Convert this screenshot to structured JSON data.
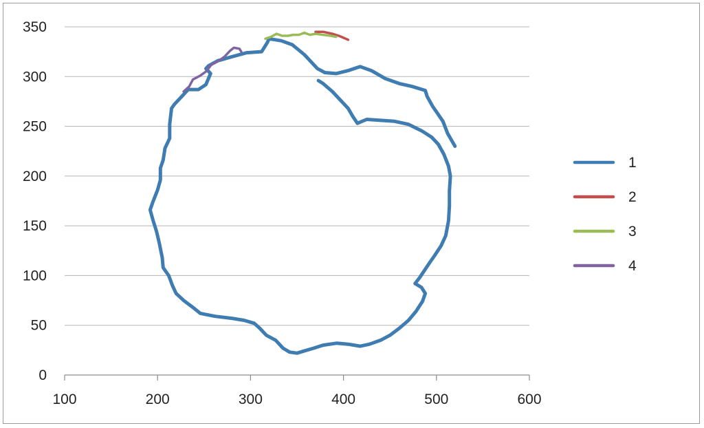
{
  "chart_data": {
    "type": "line",
    "xlim": [
      100,
      600
    ],
    "ylim": [
      0,
      350
    ],
    "x_ticks": [
      "100",
      "200",
      "300",
      "400",
      "500",
      "600"
    ],
    "y_ticks": [
      "0",
      "50",
      "100",
      "150",
      "200",
      "250",
      "300",
      "350"
    ],
    "grid": "horizontal",
    "legend_placement": "right",
    "series": [
      {
        "name": "1",
        "color": "#3e7cb1",
        "points": [
          [
            520,
            230
          ],
          [
            512,
            243
          ],
          [
            507,
            255
          ],
          [
            496,
            270
          ],
          [
            490,
            280
          ],
          [
            488,
            286
          ],
          [
            474,
            290
          ],
          [
            460,
            293
          ],
          [
            445,
            298
          ],
          [
            430,
            306
          ],
          [
            418,
            310
          ],
          [
            405,
            306
          ],
          [
            392,
            303
          ],
          [
            380,
            304
          ],
          [
            372,
            308
          ],
          [
            358,
            322
          ],
          [
            345,
            332
          ],
          [
            333,
            336
          ],
          [
            320,
            338
          ],
          [
            318,
            334
          ],
          [
            312,
            325
          ],
          [
            296,
            324
          ],
          [
            280,
            320
          ],
          [
            265,
            316
          ],
          [
            255,
            311
          ],
          [
            252,
            308
          ],
          [
            257,
            303
          ],
          [
            252,
            292
          ],
          [
            244,
            287
          ],
          [
            233,
            287
          ],
          [
            226,
            280
          ],
          [
            218,
            272
          ],
          [
            215,
            268
          ],
          [
            213,
            252
          ],
          [
            213,
            238
          ],
          [
            208,
            228
          ],
          [
            206,
            216
          ],
          [
            203,
            208
          ],
          [
            203,
            196
          ],
          [
            200,
            186
          ],
          [
            195,
            174
          ],
          [
            192,
            166
          ],
          [
            195,
            156
          ],
          [
            199,
            144
          ],
          [
            202,
            132
          ],
          [
            205,
            118
          ],
          [
            206,
            108
          ],
          [
            212,
            100
          ],
          [
            216,
            90
          ],
          [
            220,
            82
          ],
          [
            228,
            75
          ],
          [
            238,
            68
          ],
          [
            246,
            62
          ],
          [
            262,
            59
          ],
          [
            280,
            57
          ],
          [
            293,
            55
          ],
          [
            304,
            52
          ],
          [
            310,
            47
          ],
          [
            317,
            40
          ],
          [
            327,
            35
          ],
          [
            335,
            27
          ],
          [
            342,
            23
          ],
          [
            350,
            22
          ],
          [
            357,
            24
          ],
          [
            368,
            27
          ],
          [
            378,
            30
          ],
          [
            393,
            32
          ],
          [
            405,
            31
          ],
          [
            418,
            29
          ],
          [
            428,
            31
          ],
          [
            440,
            35
          ],
          [
            450,
            40
          ],
          [
            460,
            47
          ],
          [
            470,
            55
          ],
          [
            478,
            64
          ],
          [
            485,
            74
          ],
          [
            488,
            82
          ],
          [
            484,
            88
          ],
          [
            477,
            92
          ],
          [
            482,
            98
          ],
          [
            492,
            112
          ],
          [
            498,
            120
          ],
          [
            505,
            130
          ],
          [
            510,
            140
          ],
          [
            513,
            155
          ],
          [
            514,
            170
          ],
          [
            514,
            185
          ],
          [
            515,
            200
          ],
          [
            513,
            210
          ],
          [
            508,
            222
          ],
          [
            502,
            232
          ],
          [
            495,
            239
          ],
          [
            485,
            245
          ],
          [
            470,
            252
          ],
          [
            455,
            255
          ],
          [
            440,
            256
          ],
          [
            425,
            257
          ],
          [
            415,
            253
          ],
          [
            410,
            260
          ],
          [
            405,
            268
          ],
          [
            398,
            275
          ],
          [
            388,
            285
          ],
          [
            378,
            293
          ],
          [
            373,
            296
          ]
        ]
      },
      {
        "name": "2",
        "color": "#c0504d",
        "points": [
          [
            370,
            345
          ],
          [
            378,
            345
          ],
          [
            388,
            343
          ],
          [
            395,
            341
          ],
          [
            400,
            339
          ],
          [
            405,
            337
          ]
        ]
      },
      {
        "name": "3",
        "color": "#9bbb59",
        "points": [
          [
            316,
            338
          ],
          [
            322,
            340
          ],
          [
            328,
            343
          ],
          [
            334,
            341
          ],
          [
            340,
            341
          ],
          [
            346,
            342
          ],
          [
            352,
            342
          ],
          [
            358,
            344
          ],
          [
            364,
            342
          ],
          [
            370,
            343
          ],
          [
            378,
            342
          ],
          [
            386,
            341
          ],
          [
            392,
            340
          ]
        ]
      },
      {
        "name": "4",
        "color": "#8064a2",
        "points": [
          [
            228,
            285
          ],
          [
            234,
            290
          ],
          [
            238,
            297
          ],
          [
            246,
            301
          ],
          [
            252,
            305
          ],
          [
            258,
            312
          ],
          [
            266,
            316
          ],
          [
            272,
            320
          ],
          [
            278,
            326
          ],
          [
            282,
            329
          ],
          [
            288,
            328
          ],
          [
            290,
            325
          ]
        ]
      }
    ]
  }
}
